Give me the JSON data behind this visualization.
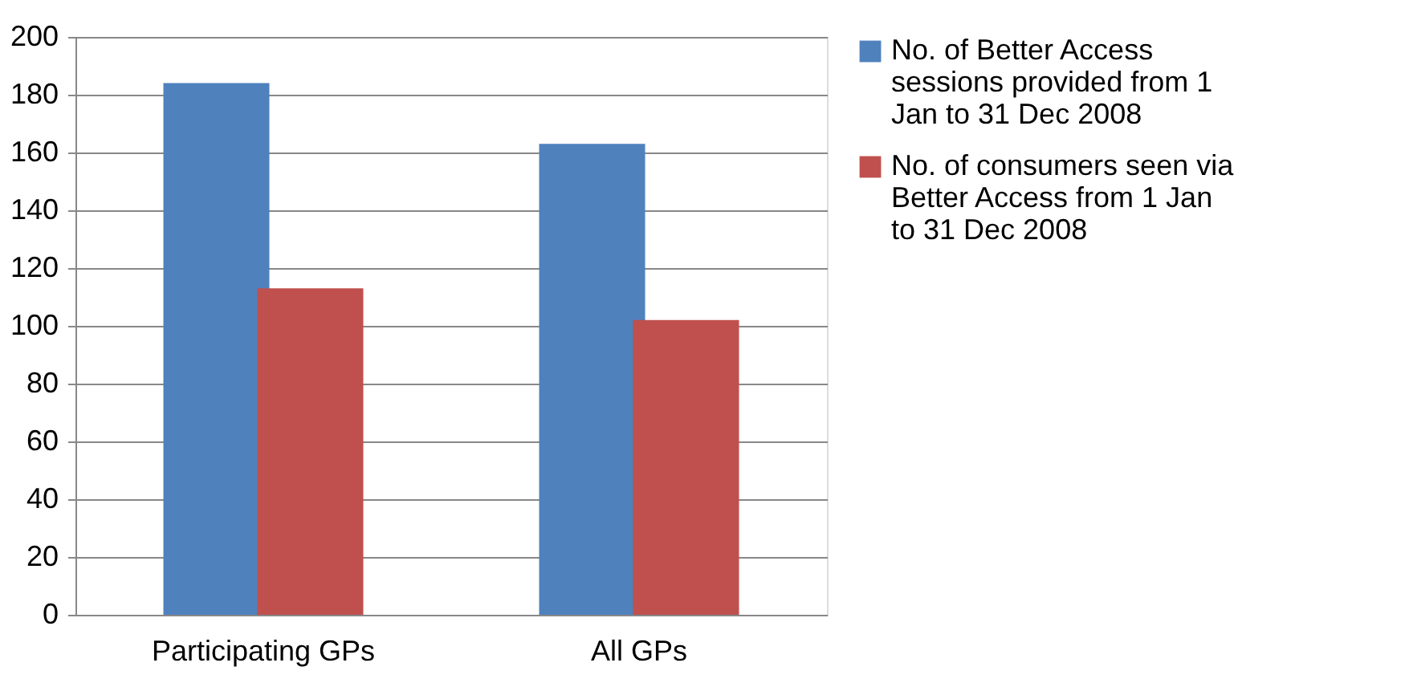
{
  "chart_data": {
    "type": "bar",
    "categories": [
      "Participating GPs",
      "All GPs"
    ],
    "series": [
      {
        "name": "No. of Better Access sessions provided from 1 Jan to 31 Dec 2008",
        "color": "#4f81bd",
        "values": [
          184,
          163
        ]
      },
      {
        "name": "No. of consumers seen via Better Access from 1 Jan to 31 Dec 2008",
        "color": "#c0504d",
        "values": [
          113,
          102
        ]
      }
    ],
    "ylim": [
      0,
      200
    ],
    "yticks": [
      0,
      20,
      40,
      60,
      80,
      100,
      120,
      140,
      160,
      180,
      200
    ],
    "grid": "y",
    "legend": "right"
  }
}
